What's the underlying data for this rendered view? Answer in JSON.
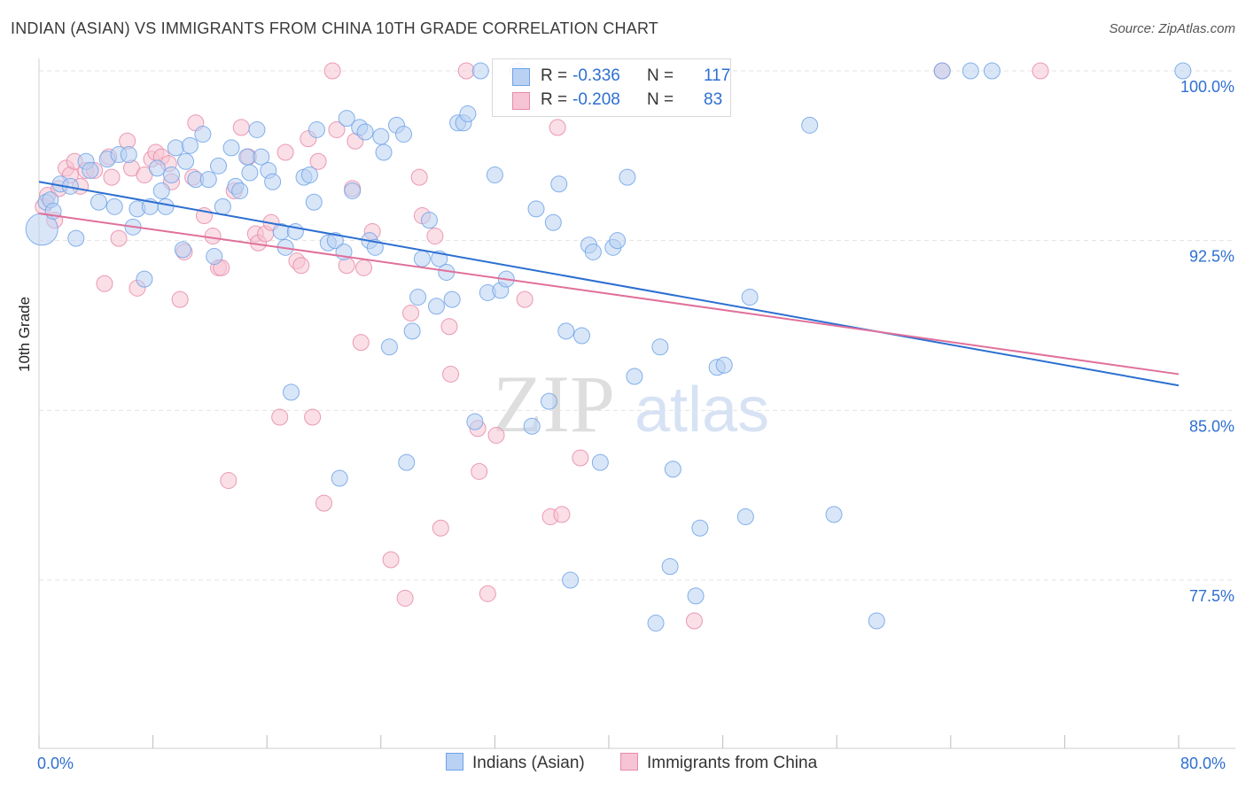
{
  "title": "INDIAN (ASIAN) VS IMMIGRANTS FROM CHINA 10TH GRADE CORRELATION CHART",
  "source": "Source: ZipAtlas.com",
  "watermark": {
    "zip": "ZIP",
    "atlas": "atlas"
  },
  "legend": {
    "r_label": "R =",
    "n_label": "N =",
    "series": [
      {
        "name": "Indians (Asian)",
        "r": "-0.336",
        "n": "117",
        "color": "#6fa3e8",
        "fill": "#b9d1f3"
      },
      {
        "name": "Immigrants from China",
        "r": "-0.208",
        "n": "83",
        "color": "#e88aa8",
        "fill": "#f6c4d4"
      }
    ]
  },
  "colors": {
    "blue_line": "#2c6fd1",
    "pink_line": "#e0709a",
    "axis_text": "#2e6fd0",
    "grid": "#e3e3e3"
  },
  "chart_data": {
    "type": "scatter",
    "title": "INDIAN (ASIAN) VS IMMIGRANTS FROM CHINA 10TH GRADE CORRELATION CHART",
    "xlabel": "",
    "ylabel": "10th Grade",
    "xlim": [
      0,
      80
    ],
    "ylim": [
      71.0,
      100.8
    ],
    "x_tick_labels": [
      "0.0%",
      "80.0%"
    ],
    "y_ticks": [
      77.5,
      85.0,
      92.5,
      100.0
    ],
    "y_tick_labels": [
      "77.5%",
      "85.0%",
      "92.5%",
      "100.0%"
    ],
    "grid": true,
    "series": [
      {
        "name": "Indians (Asian)",
        "trend": {
          "x": [
            0,
            80
          ],
          "y": [
            95.1,
            86.1
          ]
        },
        "points": [
          [
            0.2,
            93.0
          ],
          [
            0.5,
            94.2
          ],
          [
            0.8,
            94.3
          ],
          [
            1.0,
            93.8
          ],
          [
            1.5,
            95.0
          ],
          [
            2.2,
            94.9
          ],
          [
            2.6,
            92.6
          ],
          [
            3.3,
            96.0
          ],
          [
            3.6,
            95.6
          ],
          [
            4.2,
            94.2
          ],
          [
            4.8,
            96.1
          ],
          [
            5.3,
            94.0
          ],
          [
            5.6,
            96.3
          ],
          [
            6.3,
            96.3
          ],
          [
            6.6,
            93.1
          ],
          [
            6.9,
            93.9
          ],
          [
            7.4,
            90.8
          ],
          [
            7.8,
            94.0
          ],
          [
            8.3,
            95.7
          ],
          [
            8.6,
            94.7
          ],
          [
            8.9,
            94.0
          ],
          [
            9.3,
            95.4
          ],
          [
            9.6,
            96.6
          ],
          [
            10.1,
            92.1
          ],
          [
            10.3,
            96.0
          ],
          [
            10.6,
            96.7
          ],
          [
            11.0,
            95.2
          ],
          [
            11.5,
            97.2
          ],
          [
            11.9,
            95.2
          ],
          [
            12.3,
            91.8
          ],
          [
            12.6,
            95.8
          ],
          [
            12.9,
            94.0
          ],
          [
            13.5,
            96.6
          ],
          [
            13.8,
            94.9
          ],
          [
            14.1,
            94.7
          ],
          [
            14.6,
            96.2
          ],
          [
            14.8,
            95.5
          ],
          [
            15.3,
            97.4
          ],
          [
            15.6,
            96.2
          ],
          [
            16.1,
            95.6
          ],
          [
            16.4,
            95.1
          ],
          [
            17.0,
            92.9
          ],
          [
            17.3,
            92.2
          ],
          [
            17.7,
            85.8
          ],
          [
            18.0,
            92.9
          ],
          [
            18.6,
            95.3
          ],
          [
            19.0,
            95.4
          ],
          [
            19.3,
            94.2
          ],
          [
            19.5,
            97.4
          ],
          [
            20.3,
            92.4
          ],
          [
            20.8,
            92.5
          ],
          [
            21.1,
            82.0
          ],
          [
            21.4,
            92.0
          ],
          [
            21.6,
            97.9
          ],
          [
            22.0,
            94.7
          ],
          [
            22.5,
            97.5
          ],
          [
            22.9,
            97.3
          ],
          [
            23.2,
            92.5
          ],
          [
            23.6,
            92.2
          ],
          [
            24.0,
            97.1
          ],
          [
            24.2,
            96.4
          ],
          [
            24.6,
            87.8
          ],
          [
            25.1,
            97.6
          ],
          [
            25.6,
            97.2
          ],
          [
            25.8,
            82.7
          ],
          [
            26.2,
            88.5
          ],
          [
            26.6,
            90.0
          ],
          [
            26.9,
            91.7
          ],
          [
            27.4,
            93.4
          ],
          [
            27.9,
            89.6
          ],
          [
            28.1,
            91.7
          ],
          [
            28.6,
            91.1
          ],
          [
            29.0,
            89.9
          ],
          [
            29.4,
            97.7
          ],
          [
            29.8,
            97.7
          ],
          [
            30.1,
            98.1
          ],
          [
            30.6,
            84.5
          ],
          [
            31.0,
            100.0
          ],
          [
            31.5,
            90.2
          ],
          [
            32.0,
            95.4
          ],
          [
            32.4,
            90.3
          ],
          [
            32.8,
            90.8
          ],
          [
            33.6,
            100.0
          ],
          [
            34.6,
            84.3
          ],
          [
            34.9,
            93.9
          ],
          [
            35.8,
            85.4
          ],
          [
            36.1,
            93.3
          ],
          [
            36.5,
            95.0
          ],
          [
            37.0,
            88.5
          ],
          [
            37.3,
            77.5
          ],
          [
            38.1,
            88.3
          ],
          [
            38.6,
            92.3
          ],
          [
            38.9,
            92.0
          ],
          [
            39.4,
            82.7
          ],
          [
            40.3,
            92.2
          ],
          [
            40.6,
            92.5
          ],
          [
            41.3,
            95.3
          ],
          [
            41.8,
            86.5
          ],
          [
            43.3,
            75.6
          ],
          [
            43.6,
            87.8
          ],
          [
            44.3,
            78.1
          ],
          [
            44.5,
            82.4
          ],
          [
            46.1,
            76.8
          ],
          [
            46.4,
            79.8
          ],
          [
            47.6,
            86.9
          ],
          [
            48.1,
            87.0
          ],
          [
            49.6,
            80.3
          ],
          [
            49.9,
            90.0
          ],
          [
            54.1,
            97.6
          ],
          [
            55.8,
            80.4
          ],
          [
            58.8,
            75.7
          ],
          [
            63.4,
            100.0
          ],
          [
            65.4,
            100.0
          ],
          [
            66.9,
            100.0
          ],
          [
            80.3,
            100.0
          ]
        ]
      },
      {
        "name": "Immigrants from China",
        "trend": {
          "x": [
            0,
            80
          ],
          "y": [
            93.7,
            86.6
          ]
        },
        "points": [
          [
            0.3,
            94.0
          ],
          [
            0.6,
            94.5
          ],
          [
            1.1,
            93.4
          ],
          [
            1.4,
            94.8
          ],
          [
            1.9,
            95.7
          ],
          [
            2.2,
            95.4
          ],
          [
            2.5,
            96.0
          ],
          [
            2.9,
            94.9
          ],
          [
            3.3,
            95.6
          ],
          [
            3.9,
            95.6
          ],
          [
            4.6,
            90.6
          ],
          [
            4.9,
            96.2
          ],
          [
            5.1,
            95.3
          ],
          [
            5.6,
            92.6
          ],
          [
            6.2,
            96.9
          ],
          [
            6.5,
            95.7
          ],
          [
            6.9,
            90.4
          ],
          [
            7.4,
            95.4
          ],
          [
            7.9,
            96.1
          ],
          [
            8.2,
            96.4
          ],
          [
            8.6,
            96.2
          ],
          [
            9.1,
            95.9
          ],
          [
            9.3,
            95.1
          ],
          [
            9.9,
            89.9
          ],
          [
            10.2,
            92.0
          ],
          [
            10.8,
            95.3
          ],
          [
            11.0,
            97.7
          ],
          [
            11.6,
            93.6
          ],
          [
            12.2,
            92.7
          ],
          [
            12.6,
            91.3
          ],
          [
            12.8,
            91.3
          ],
          [
            13.3,
            81.9
          ],
          [
            13.7,
            94.7
          ],
          [
            14.2,
            97.5
          ],
          [
            14.7,
            96.2
          ],
          [
            15.2,
            92.8
          ],
          [
            15.4,
            92.4
          ],
          [
            15.9,
            92.8
          ],
          [
            16.3,
            93.3
          ],
          [
            16.9,
            84.7
          ],
          [
            17.3,
            96.4
          ],
          [
            18.1,
            91.6
          ],
          [
            18.4,
            91.4
          ],
          [
            18.9,
            97.0
          ],
          [
            19.2,
            84.7
          ],
          [
            19.6,
            96.0
          ],
          [
            20.0,
            80.9
          ],
          [
            20.6,
            100.0
          ],
          [
            20.9,
            97.4
          ],
          [
            21.6,
            91.4
          ],
          [
            22.0,
            94.8
          ],
          [
            22.2,
            96.9
          ],
          [
            22.6,
            88.0
          ],
          [
            22.8,
            91.3
          ],
          [
            23.4,
            92.9
          ],
          [
            24.7,
            78.4
          ],
          [
            25.7,
            76.7
          ],
          [
            26.1,
            89.3
          ],
          [
            26.7,
            95.3
          ],
          [
            26.9,
            93.6
          ],
          [
            27.8,
            92.7
          ],
          [
            28.2,
            79.8
          ],
          [
            28.8,
            88.7
          ],
          [
            28.9,
            86.6
          ],
          [
            30.0,
            100.0
          ],
          [
            30.8,
            84.2
          ],
          [
            30.9,
            82.3
          ],
          [
            31.5,
            76.9
          ],
          [
            32.1,
            83.9
          ],
          [
            33.6,
            100.0
          ],
          [
            34.1,
            89.9
          ],
          [
            35.9,
            80.3
          ],
          [
            36.4,
            97.5
          ],
          [
            36.7,
            80.4
          ],
          [
            38.0,
            82.9
          ],
          [
            46.0,
            75.7
          ],
          [
            63.4,
            100.0
          ],
          [
            70.3,
            100.0
          ]
        ]
      }
    ]
  }
}
